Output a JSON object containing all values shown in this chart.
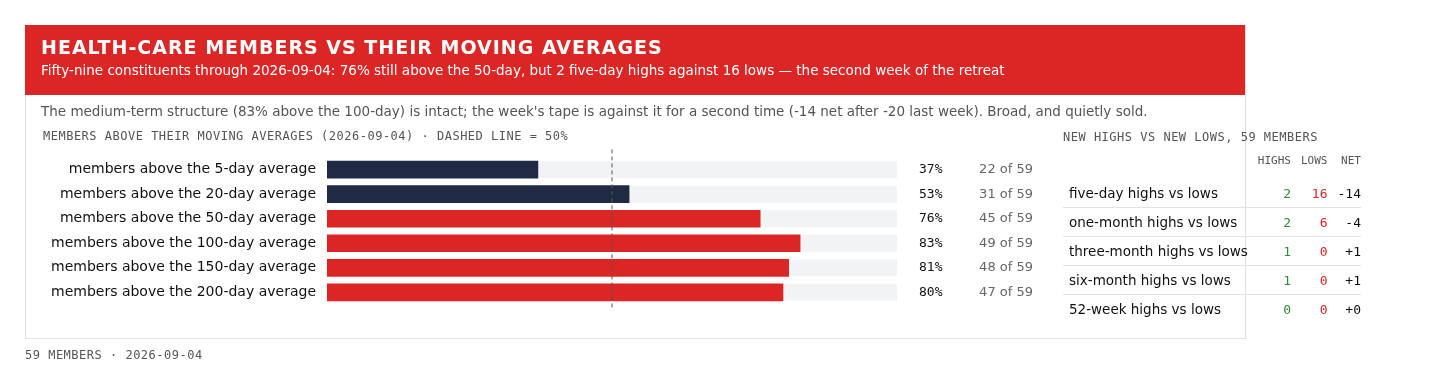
{
  "chart_data": [
    {
      "type": "bar",
      "orientation": "horizontal",
      "title": "HEALTH-CARE MEMBERS VS THEIR MOVING AVERAGES",
      "subtitle": "Fifty-nine constituents through 2026-09-04: 76% still above the 50-day, but 2 five-day highs against 16 lows — the second week of the retreat",
      "categories": [
        "members above the 5-day average",
        "members above the 20-day average",
        "members above the 50-day average",
        "members above the 100-day average",
        "members above the 150-day average",
        "members above the 200-day average"
      ],
      "values": [
        37,
        53,
        76,
        83,
        81,
        80
      ],
      "colors": [
        "#1f2a44",
        "#1f2a44",
        "#dc2626",
        "#dc2626",
        "#dc2626",
        "#dc2626"
      ],
      "value_labels": [
        "37%",
        "53%",
        "76%",
        "83%",
        "81%",
        "80%"
      ],
      "xlim": [
        0,
        100
      ],
      "tick_labels": "y",
      "ref_lines": [
        {
          "axis": "x",
          "value": 50,
          "line_style": "dashed",
          "color": "#555555"
        }
      ],
      "annotations": [
        "The medium-term structure (83% above the 100-day) is intact; the week's tape is against it for a second time (-14 net after -20 last week). Broad, and quietly sold.",
        "MEMBERS ABOVE THEIR MOVING AVERAGES (2026-09-04) · DASHED LINE = 50%",
        "59 MEMBERS · 2026-09-04",
        "22 of 59",
        "31 of 59",
        "45 of 59",
        "49 of 59",
        "48 of 59",
        "47 of 59"
      ]
    },
    {
      "type": "other",
      "title": "NEW HIGHS VS NEW LOWS, 59 MEMBERS",
      "data_labels": true,
      "categories": [
        "five-day highs vs lows",
        "one-month highs vs lows",
        "three-month highs vs lows",
        "six-month highs vs lows",
        "52-week highs vs lows"
      ],
      "series": [
        {
          "name": "HIGHS",
          "colors": [
            "#2e8b3a",
            "#2e8b3a",
            "#2e8b3a",
            "#2e8b3a",
            "#2e8b3a"
          ],
          "values": [
            2,
            2,
            1,
            1,
            0
          ]
        },
        {
          "name": "LOWS",
          "colors": [
            "#dc2626",
            "#dc2626",
            "#dc2626",
            "#dc2626",
            "#dc2626"
          ],
          "values": [
            16,
            6,
            0,
            0,
            0
          ]
        },
        {
          "name": "NET",
          "colors": [
            "#111111",
            "#111111",
            "#111111",
            "#111111",
            "#111111"
          ],
          "values": [
            -14,
            -4,
            1,
            1,
            0
          ],
          "value_labels": [
            "-14",
            "-4",
            "+1",
            "+1",
            "+0"
          ]
        }
      ]
    }
  ]
}
